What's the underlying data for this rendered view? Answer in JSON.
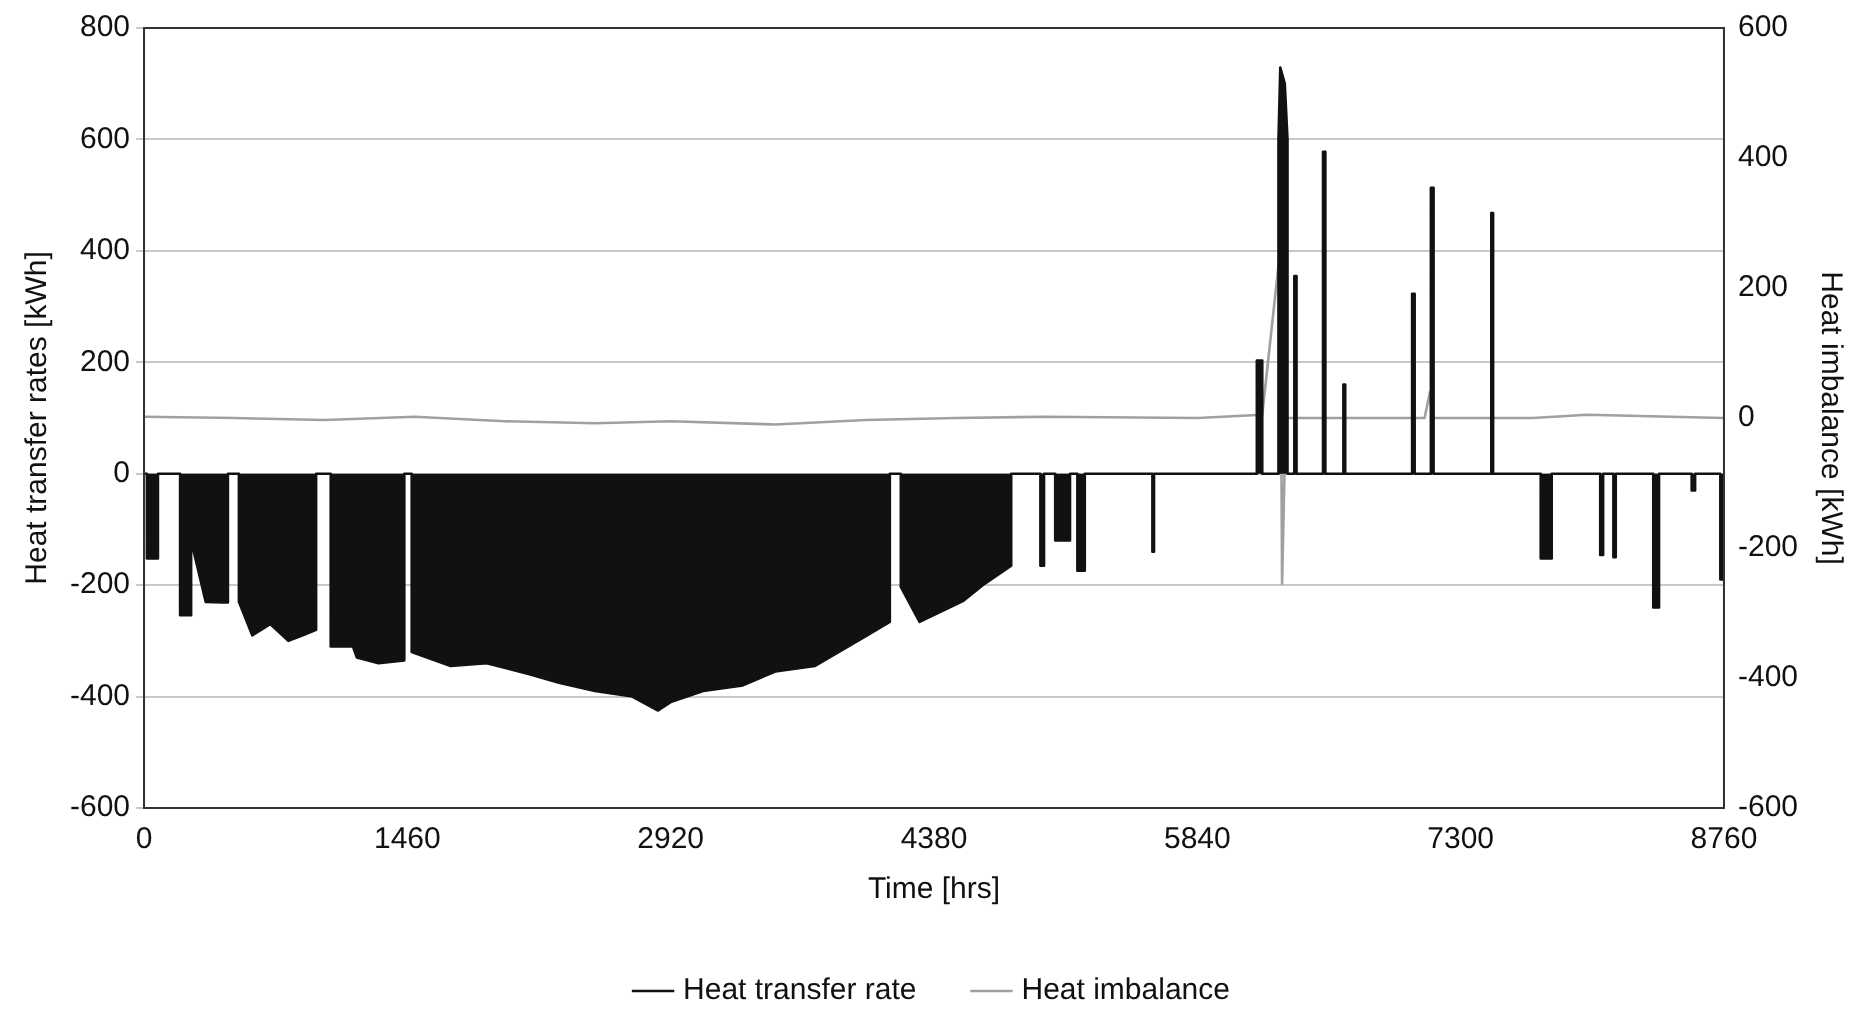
{
  "chart_data": {
    "type": "line",
    "xlabel": "Time [hrs]",
    "ylabel": "Heat transfer rates [kWh]",
    "y2label": "Heat imbalance [kWh]",
    "xlim": [
      0,
      8760
    ],
    "xticks": [
      0,
      1460,
      2920,
      4380,
      5840,
      7300,
      8760
    ],
    "ylim": [
      -600,
      800
    ],
    "yticks": [
      -600,
      -400,
      -200,
      0,
      200,
      400,
      600,
      800
    ],
    "y2lim": [
      -600,
      600
    ],
    "y2ticks": [
      -600,
      -400,
      -200,
      0,
      200,
      400,
      600
    ],
    "grid": "y",
    "legend": "bottom",
    "marker": "none",
    "line_style": "solid",
    "series": [
      {
        "name": "Heat transfer rate",
        "type": "area",
        "color": "#111111",
        "x": [
          0,
          16,
          16,
          77,
          77,
          200,
          200,
          261,
          261,
          342,
          440,
          465,
          465,
          526,
          526,
          600,
          700,
          800,
          880,
          954,
          954,
          1035,
          1035,
          1158,
          1180,
          1300,
          1443,
          1443,
          1484,
          1484,
          1700,
          1900,
          2137,
          2300,
          2500,
          2707,
          2850,
          2920,
          3100,
          3320,
          3500,
          3720,
          4000,
          4135,
          4135,
          4196,
          4196,
          4300,
          4543,
          4650,
          4808,
          4808,
          4970,
          4970,
          4990,
          4990,
          5052,
          5052,
          5134,
          5134,
          5175,
          5175,
          5216,
          5216,
          5591,
          5591,
          5600,
          5600,
          6170,
          6170,
          6200,
          6200,
          6290,
          6290,
          6300,
          6325,
          6340,
          6340,
          6378,
          6378,
          6390,
          6390,
          6537,
          6537,
          6550,
          6550,
          6650,
          6650,
          6660,
          6660,
          7031,
          7031,
          7045,
          7045,
          7135,
          7135,
          7150,
          7150,
          7470,
          7470,
          7480,
          7480,
          7744,
          7744,
          7805,
          7805,
          8074,
          8074,
          8090,
          8090,
          8147,
          8147,
          8160,
          8160,
          8368,
          8368,
          8400,
          8400,
          8581,
          8581,
          8600,
          8600,
          8740,
          8740,
          8760
        ],
        "values": [
          0,
          0,
          -152,
          -152,
          0,
          0,
          -254,
          -254,
          -120,
          -230,
          -231,
          -231,
          0,
          0,
          -230,
          -290,
          -270,
          -300,
          -290,
          -280,
          0,
          0,
          -310,
          -310,
          -330,
          -340,
          -335,
          0,
          0,
          -320,
          -345,
          -340,
          -360,
          -375,
          -390,
          -400,
          -425,
          -410,
          -390,
          -380,
          -355,
          -345,
          -292,
          -266,
          0,
          0,
          -203,
          -266,
          -228,
          -200,
          -165,
          0,
          0,
          -165,
          -165,
          0,
          0,
          -120,
          -120,
          0,
          0,
          -174,
          -174,
          0,
          0,
          -140,
          -140,
          0,
          0,
          203,
          203,
          0,
          0,
          600,
          729,
          700,
          600,
          0,
          0,
          355,
          355,
          0,
          0,
          578,
          578,
          0,
          0,
          160,
          160,
          0,
          0,
          323,
          323,
          0,
          0,
          513,
          513,
          0,
          0,
          468,
          468,
          0,
          0,
          -152,
          -152,
          0,
          0,
          -146,
          -146,
          0,
          0,
          -150,
          -150,
          0,
          0,
          -240,
          -240,
          0,
          0,
          -30,
          -30,
          0,
          0,
          -190,
          -190
        ]
      },
      {
        "name": "Heat imbalance",
        "type": "line",
        "axis": "y2",
        "color": "#a0a0a0",
        "x": [
          0,
          500,
          1000,
          1500,
          2000,
          2500,
          2920,
          3500,
          4000,
          4500,
          5000,
          5840,
          6200,
          6300,
          6310,
          6330,
          7100,
          7130,
          7140,
          7700,
          8000,
          8760
        ],
        "values": [
          2,
          0,
          -3,
          2,
          -5,
          -8,
          -5,
          -10,
          -3,
          0,
          2,
          0,
          5,
          260,
          -255,
          0,
          0,
          40,
          0,
          0,
          5,
          0
        ]
      }
    ]
  }
}
